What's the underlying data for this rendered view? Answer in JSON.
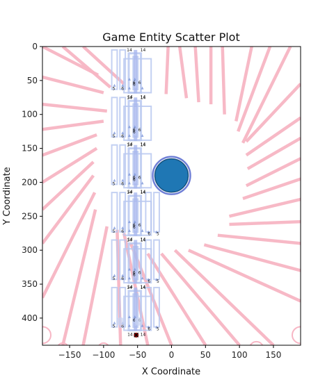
{
  "chart_data": {
    "type": "scatter",
    "title": "Game Entity Scatter Plot",
    "xlabel": "X Coordinate",
    "ylabel": "Y Coordinate",
    "xlim": [
      -190,
      190
    ],
    "ylim": [
      440,
      0
    ],
    "y_inverted": true,
    "xticks": [
      -150,
      -100,
      -50,
      0,
      50,
      100,
      150
    ],
    "yticks": [
      0,
      50,
      100,
      150,
      200,
      250,
      300,
      350,
      400
    ],
    "grid": false,
    "colors": {
      "ray": "#f7b6c4",
      "box": "#b8c8f0",
      "entity": "#1f77b4",
      "entity_ring": "#6f7fd6",
      "marker": "#8b0000"
    },
    "entity": {
      "x": 0,
      "y": 190,
      "r": 24
    },
    "marker": {
      "x": -52,
      "y": 425
    },
    "rays": [
      {
        "x1": -190,
        "y1": 0,
        "x2": -108,
        "y2": 42
      },
      {
        "x1": -160,
        "y1": 0,
        "x2": -90,
        "y2": 60
      },
      {
        "x1": -130,
        "y1": 0,
        "x2": -70,
        "y2": 55
      },
      {
        "x1": -190,
        "y1": 45,
        "x2": -100,
        "y2": 68
      },
      {
        "x1": -190,
        "y1": 85,
        "x2": -95,
        "y2": 95
      },
      {
        "x1": -190,
        "y1": 122,
        "x2": -100,
        "y2": 110
      },
      {
        "x1": -190,
        "y1": 160,
        "x2": -110,
        "y2": 130
      },
      {
        "x1": -190,
        "y1": 200,
        "x2": -110,
        "y2": 150
      },
      {
        "x1": -190,
        "y1": 240,
        "x2": -115,
        "y2": 170
      },
      {
        "x1": -190,
        "y1": 290,
        "x2": -115,
        "y2": 190
      },
      {
        "x1": -190,
        "y1": 370,
        "x2": -113,
        "y2": 215
      },
      {
        "x1": -160,
        "y1": 440,
        "x2": -112,
        "y2": 240
      },
      {
        "x1": -130,
        "y1": 440,
        "x2": -95,
        "y2": 265
      },
      {
        "x1": -75,
        "y1": 440,
        "x2": -80,
        "y2": 270
      },
      {
        "x1": -35,
        "y1": 440,
        "x2": -70,
        "y2": 275
      },
      {
        "x1": 0,
        "y1": 440,
        "x2": -60,
        "y2": 290
      },
      {
        "x1": 50,
        "y1": 440,
        "x2": -35,
        "y2": 305
      },
      {
        "x1": 100,
        "y1": 440,
        "x2": -15,
        "y2": 305
      },
      {
        "x1": 150,
        "y1": 440,
        "x2": 5,
        "y2": 300
      },
      {
        "x1": 190,
        "y1": 375,
        "x2": 25,
        "y2": 300
      },
      {
        "x1": 190,
        "y1": 330,
        "x2": 48,
        "y2": 292
      },
      {
        "x1": 190,
        "y1": 290,
        "x2": 68,
        "y2": 278
      },
      {
        "x1": 190,
        "y1": 258,
        "x2": 85,
        "y2": 262
      },
      {
        "x1": 190,
        "y1": 225,
        "x2": 85,
        "y2": 250
      },
      {
        "x1": 190,
        "y1": 195,
        "x2": 105,
        "y2": 224
      },
      {
        "x1": 190,
        "y1": 165,
        "x2": 110,
        "y2": 205
      },
      {
        "x1": 190,
        "y1": 135,
        "x2": 112,
        "y2": 180
      },
      {
        "x1": 190,
        "y1": 105,
        "x2": 110,
        "y2": 160
      },
      {
        "x1": 190,
        "y1": 55,
        "x2": 110,
        "y2": 140
      },
      {
        "x1": 175,
        "y1": 0,
        "x2": 105,
        "y2": 142
      },
      {
        "x1": 145,
        "y1": 0,
        "x2": 98,
        "y2": 125
      },
      {
        "x1": 118,
        "y1": 0,
        "x2": 95,
        "y2": 110
      },
      {
        "x1": 75,
        "y1": 0,
        "x2": 78,
        "y2": 100
      },
      {
        "x1": 58,
        "y1": 0,
        "x2": 58,
        "y2": 85
      },
      {
        "x1": 35,
        "y1": 0,
        "x2": 40,
        "y2": 82
      },
      {
        "x1": 12,
        "y1": 0,
        "x2": 22,
        "y2": 76
      },
      {
        "x1": -5,
        "y1": 0,
        "x2": -8,
        "y2": 70
      }
    ],
    "rooms": [
      {
        "y": 5,
        "labels": {
          "top": [
            "6",
            "6"
          ],
          "top14": [
            "14",
            "14"
          ]
        }
      },
      {
        "y": 75
      },
      {
        "y": 145
      },
      {
        "y": 215,
        "side": true
      },
      {
        "y": 285,
        "side": true
      },
      {
        "y": 355,
        "side": true
      }
    ],
    "room_labels": {
      "five": "5",
      "six": "6",
      "fourteen": "14"
    }
  }
}
